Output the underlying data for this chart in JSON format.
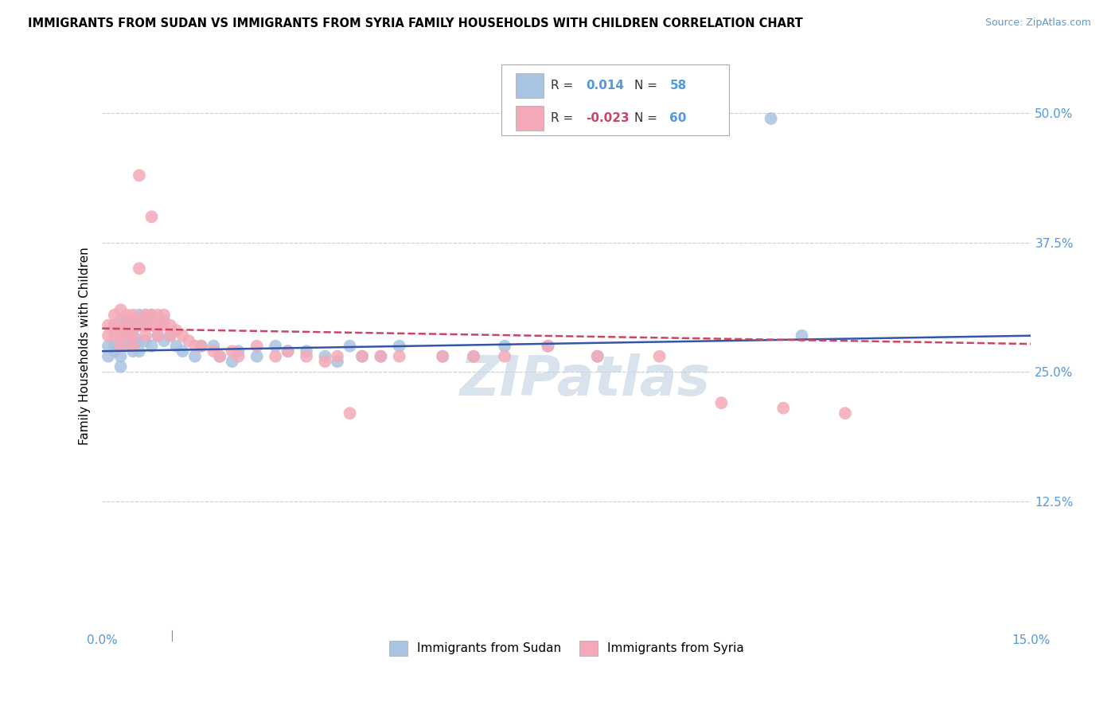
{
  "title": "IMMIGRANTS FROM SUDAN VS IMMIGRANTS FROM SYRIA FAMILY HOUSEHOLDS WITH CHILDREN CORRELATION CHART",
  "source": "Source: ZipAtlas.com",
  "ylabel": "Family Households with Children",
  "x_min": 0.0,
  "x_max": 0.15,
  "y_min": 0.0,
  "y_max": 0.55,
  "x_tick_labels": [
    "0.0%",
    "15.0%"
  ],
  "y_tick_labels": [
    "12.5%",
    "25.0%",
    "37.5%",
    "50.0%"
  ],
  "y_ticks": [
    0.125,
    0.25,
    0.375,
    0.5
  ],
  "x_ticks": [
    0.0,
    0.15
  ],
  "color_sudan": "#a8c4e0",
  "color_syria": "#f4a9b8",
  "color_trendline_sudan": "#3355aa",
  "color_trendline_syria": "#cc4466",
  "watermark": "ZIPatlas",
  "watermark_color": "#c8d8e8",
  "sudan_x": [
    0.001,
    0.001,
    0.002,
    0.002,
    0.002,
    0.003,
    0.003,
    0.003,
    0.003,
    0.003,
    0.004,
    0.004,
    0.004,
    0.004,
    0.005,
    0.005,
    0.005,
    0.005,
    0.006,
    0.006,
    0.006,
    0.006,
    0.007,
    0.007,
    0.007,
    0.008,
    0.008,
    0.008,
    0.009,
    0.009,
    0.01,
    0.01,
    0.011,
    0.012,
    0.013,
    0.015,
    0.016,
    0.018,
    0.019,
    0.021,
    0.022,
    0.025,
    0.028,
    0.03,
    0.033,
    0.036,
    0.038,
    0.04,
    0.042,
    0.045,
    0.048,
    0.055,
    0.06,
    0.065,
    0.072,
    0.08,
    0.108,
    0.113
  ],
  "sudan_y": [
    0.275,
    0.265,
    0.295,
    0.275,
    0.27,
    0.3,
    0.285,
    0.275,
    0.265,
    0.255,
    0.3,
    0.295,
    0.285,
    0.275,
    0.3,
    0.29,
    0.28,
    0.27,
    0.305,
    0.295,
    0.28,
    0.27,
    0.305,
    0.295,
    0.28,
    0.305,
    0.295,
    0.275,
    0.295,
    0.285,
    0.3,
    0.28,
    0.285,
    0.275,
    0.27,
    0.265,
    0.275,
    0.275,
    0.265,
    0.26,
    0.27,
    0.265,
    0.275,
    0.27,
    0.27,
    0.265,
    0.26,
    0.275,
    0.265,
    0.265,
    0.275,
    0.265,
    0.265,
    0.275,
    0.275,
    0.265,
    0.495,
    0.285
  ],
  "syria_x": [
    0.001,
    0.001,
    0.002,
    0.002,
    0.002,
    0.003,
    0.003,
    0.003,
    0.003,
    0.004,
    0.004,
    0.004,
    0.005,
    0.005,
    0.005,
    0.005,
    0.006,
    0.006,
    0.006,
    0.007,
    0.007,
    0.007,
    0.008,
    0.008,
    0.008,
    0.009,
    0.009,
    0.009,
    0.01,
    0.01,
    0.011,
    0.011,
    0.012,
    0.013,
    0.014,
    0.015,
    0.016,
    0.018,
    0.019,
    0.021,
    0.022,
    0.025,
    0.028,
    0.03,
    0.033,
    0.036,
    0.038,
    0.04,
    0.042,
    0.045,
    0.048,
    0.055,
    0.06,
    0.065,
    0.072,
    0.08,
    0.09,
    0.1,
    0.11,
    0.12
  ],
  "syria_y": [
    0.295,
    0.285,
    0.305,
    0.295,
    0.285,
    0.31,
    0.295,
    0.285,
    0.275,
    0.305,
    0.295,
    0.285,
    0.305,
    0.295,
    0.285,
    0.275,
    0.3,
    0.44,
    0.35,
    0.305,
    0.295,
    0.285,
    0.305,
    0.4,
    0.295,
    0.305,
    0.295,
    0.285,
    0.305,
    0.295,
    0.295,
    0.285,
    0.29,
    0.285,
    0.28,
    0.275,
    0.275,
    0.27,
    0.265,
    0.27,
    0.265,
    0.275,
    0.265,
    0.27,
    0.265,
    0.26,
    0.265,
    0.21,
    0.265,
    0.265,
    0.265,
    0.265,
    0.265,
    0.265,
    0.275,
    0.265,
    0.265,
    0.22,
    0.215,
    0.21
  ]
}
